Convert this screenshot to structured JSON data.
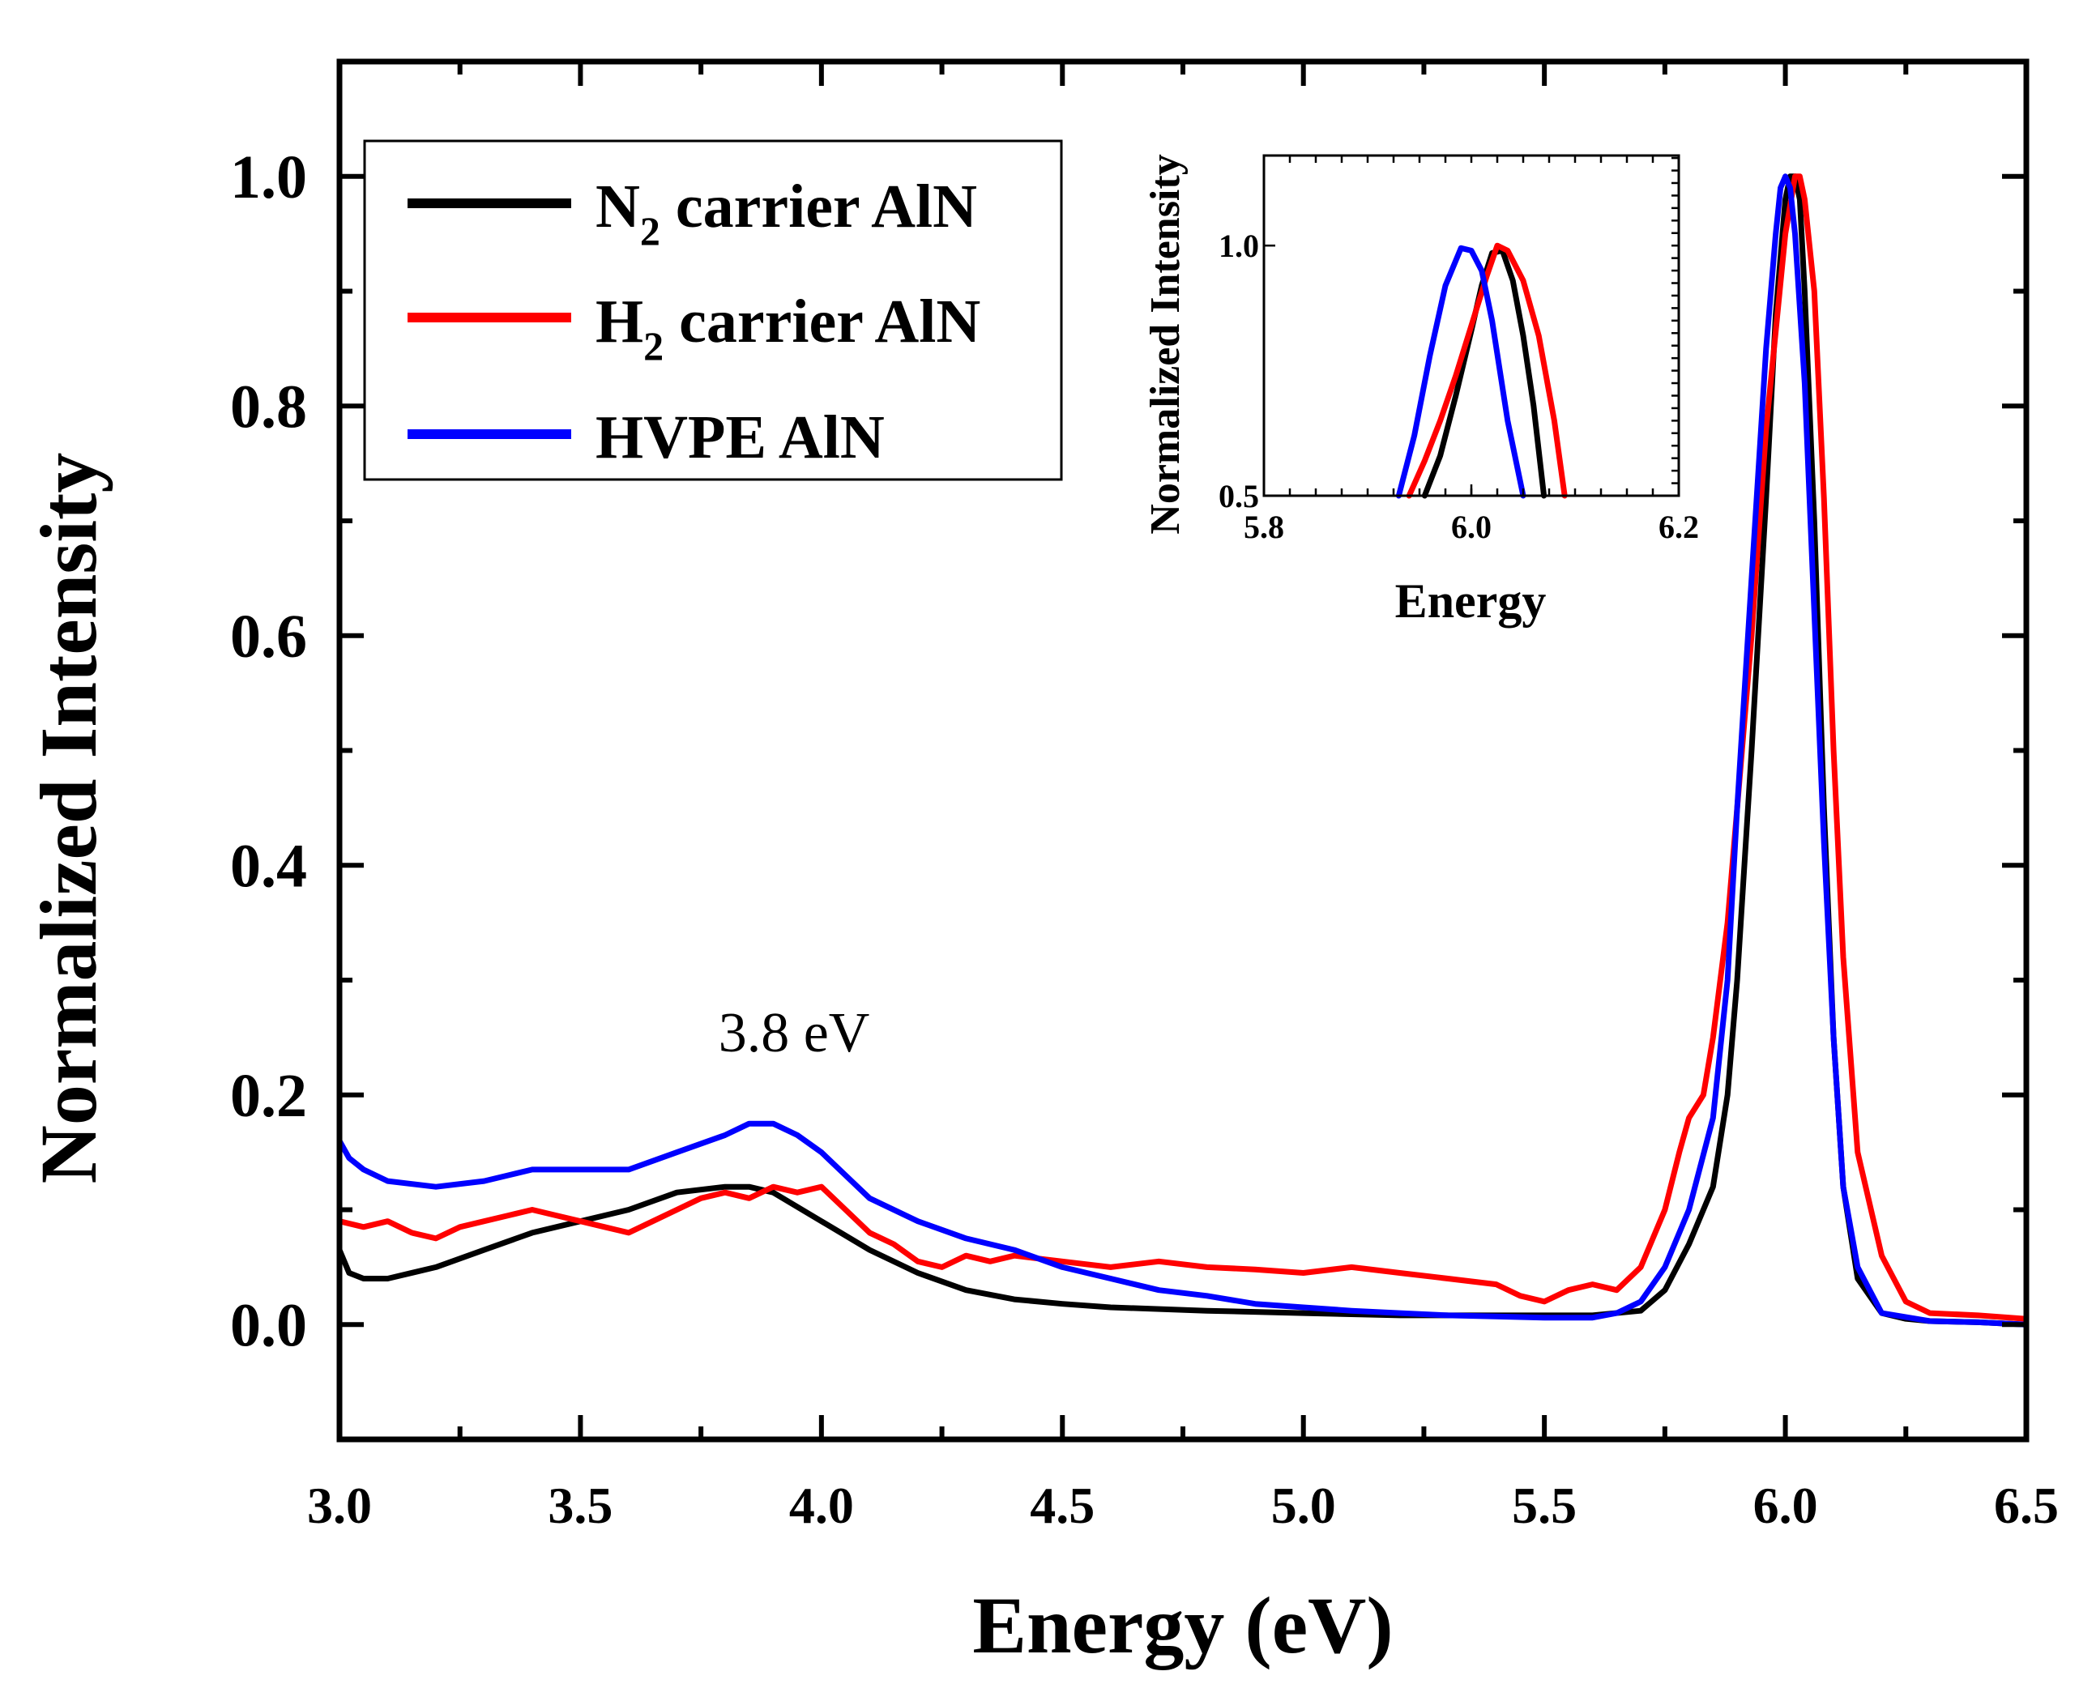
{
  "chart_data": [
    {
      "id": "main",
      "type": "line",
      "xlabel": "Energy (eV)",
      "ylabel": "Normalized Intensity",
      "xlim": [
        3.0,
        6.5
      ],
      "ylim": [
        -0.1,
        1.1
      ],
      "xticks": [
        "3.0",
        "3.5",
        "4.0",
        "4.5",
        "5.0",
        "5.5",
        "6.0",
        "6.5"
      ],
      "yticks": [
        "0.0",
        "0.2",
        "0.4",
        "0.6",
        "0.8",
        "1.0"
      ],
      "annotation": "3.8 eV",
      "legend": {
        "position": "top-left",
        "entries": [
          {
            "base": "N",
            "sub": "2",
            "rest": " carrier AlN",
            "color": "#000000"
          },
          {
            "base": "H",
            "sub": "2",
            "rest": " carrier AlN",
            "color": "#ff0000"
          },
          {
            "base": "HVPE AlN",
            "sub": "",
            "rest": "",
            "color": "#0000ff"
          }
        ]
      },
      "series": [
        {
          "name": "N2 carrier AlN",
          "color": "#000000",
          "x": [
            3.0,
            3.02,
            3.05,
            3.1,
            3.2,
            3.3,
            3.4,
            3.5,
            3.6,
            3.7,
            3.8,
            3.85,
            3.9,
            4.0,
            4.1,
            4.2,
            4.3,
            4.4,
            4.5,
            4.6,
            4.8,
            5.0,
            5.2,
            5.4,
            5.6,
            5.7,
            5.75,
            5.8,
            5.85,
            5.88,
            5.9,
            5.93,
            5.96,
            5.98,
            6.0,
            6.01,
            6.02,
            6.03,
            6.04,
            6.06,
            6.08,
            6.1,
            6.12,
            6.15,
            6.2,
            6.25,
            6.3,
            6.4,
            6.5
          ],
          "y": [
            0.065,
            0.045,
            0.04,
            0.04,
            0.05,
            0.065,
            0.08,
            0.09,
            0.1,
            0.115,
            0.12,
            0.12,
            0.115,
            0.09,
            0.065,
            0.045,
            0.03,
            0.022,
            0.018,
            0.015,
            0.012,
            0.01,
            0.008,
            0.008,
            0.008,
            0.012,
            0.03,
            0.07,
            0.12,
            0.2,
            0.3,
            0.5,
            0.72,
            0.88,
            0.98,
            1.0,
            1.0,
            0.98,
            0.9,
            0.7,
            0.45,
            0.25,
            0.12,
            0.04,
            0.01,
            0.005,
            0.003,
            0.002,
            0.0
          ]
        },
        {
          "name": "H2 carrier AlN",
          "color": "#ff0000",
          "x": [
            3.0,
            3.05,
            3.1,
            3.15,
            3.2,
            3.25,
            3.3,
            3.35,
            3.4,
            3.45,
            3.5,
            3.55,
            3.6,
            3.65,
            3.7,
            3.75,
            3.8,
            3.85,
            3.9,
            3.95,
            4.0,
            4.05,
            4.1,
            4.15,
            4.2,
            4.25,
            4.3,
            4.35,
            4.4,
            4.5,
            4.6,
            4.7,
            4.8,
            4.9,
            5.0,
            5.1,
            5.2,
            5.3,
            5.4,
            5.45,
            5.5,
            5.55,
            5.6,
            5.65,
            5.7,
            5.75,
            5.78,
            5.8,
            5.83,
            5.85,
            5.88,
            5.9,
            5.93,
            5.96,
            6.0,
            6.02,
            6.03,
            6.04,
            6.06,
            6.08,
            6.1,
            6.12,
            6.15,
            6.2,
            6.25,
            6.3,
            6.4,
            6.5
          ],
          "y": [
            0.09,
            0.085,
            0.09,
            0.08,
            0.075,
            0.085,
            0.09,
            0.095,
            0.1,
            0.095,
            0.09,
            0.085,
            0.08,
            0.09,
            0.1,
            0.11,
            0.115,
            0.11,
            0.12,
            0.115,
            0.12,
            0.1,
            0.08,
            0.07,
            0.055,
            0.05,
            0.06,
            0.055,
            0.06,
            0.055,
            0.05,
            0.055,
            0.05,
            0.048,
            0.045,
            0.05,
            0.045,
            0.04,
            0.035,
            0.025,
            0.02,
            0.03,
            0.035,
            0.03,
            0.05,
            0.1,
            0.15,
            0.18,
            0.2,
            0.25,
            0.35,
            0.45,
            0.6,
            0.78,
            0.95,
            1.0,
            1.0,
            0.98,
            0.9,
            0.72,
            0.5,
            0.32,
            0.15,
            0.06,
            0.02,
            0.01,
            0.008,
            0.005
          ]
        },
        {
          "name": "HVPE AlN",
          "color": "#0000ff",
          "x": [
            3.0,
            3.02,
            3.05,
            3.1,
            3.2,
            3.3,
            3.35,
            3.4,
            3.5,
            3.6,
            3.7,
            3.8,
            3.85,
            3.9,
            3.95,
            4.0,
            4.05,
            4.1,
            4.2,
            4.3,
            4.4,
            4.5,
            4.6,
            4.7,
            4.8,
            4.9,
            5.0,
            5.1,
            5.2,
            5.3,
            5.4,
            5.5,
            5.6,
            5.65,
            5.7,
            5.75,
            5.8,
            5.85,
            5.88,
            5.9,
            5.93,
            5.96,
            5.98,
            5.99,
            6.0,
            6.01,
            6.02,
            6.04,
            6.06,
            6.08,
            6.1,
            6.12,
            6.15,
            6.2,
            6.3,
            6.4,
            6.5
          ],
          "y": [
            0.16,
            0.145,
            0.135,
            0.125,
            0.12,
            0.125,
            0.13,
            0.135,
            0.135,
            0.135,
            0.15,
            0.165,
            0.175,
            0.175,
            0.165,
            0.15,
            0.13,
            0.11,
            0.09,
            0.075,
            0.065,
            0.05,
            0.04,
            0.03,
            0.025,
            0.018,
            0.015,
            0.012,
            0.01,
            0.008,
            0.007,
            0.006,
            0.006,
            0.01,
            0.02,
            0.05,
            0.1,
            0.18,
            0.3,
            0.45,
            0.65,
            0.85,
            0.95,
            0.99,
            1.0,
            0.99,
            0.95,
            0.82,
            0.62,
            0.42,
            0.25,
            0.12,
            0.05,
            0.01,
            0.003,
            0.002,
            0.0
          ]
        }
      ]
    },
    {
      "id": "inset",
      "type": "line",
      "xlabel": "Energy",
      "ylabel": "Normalized Intensity",
      "xlim": [
        5.8,
        6.2
      ],
      "ylim": [
        0.5,
        1.18
      ],
      "xticks": [
        "5.8",
        "6.0",
        "6.2"
      ],
      "yticks": [
        "0.5",
        "1.0"
      ],
      "series": [
        {
          "name": "N2 carrier AlN",
          "color": "#000000",
          "x": [
            5.955,
            5.97,
            5.985,
            6.0,
            6.01,
            6.02,
            6.03,
            6.04,
            6.05,
            6.06,
            6.07
          ],
          "y": [
            0.5,
            0.58,
            0.7,
            0.83,
            0.92,
            0.985,
            0.99,
            0.93,
            0.82,
            0.68,
            0.5
          ]
        },
        {
          "name": "H2 carrier AlN",
          "color": "#ff0000",
          "x": [
            5.94,
            5.955,
            5.97,
            5.985,
            6.0,
            6.015,
            6.025,
            6.035,
            6.05,
            6.065,
            6.08,
            6.09
          ],
          "y": [
            0.5,
            0.57,
            0.65,
            0.74,
            0.84,
            0.94,
            1.0,
            0.99,
            0.93,
            0.82,
            0.65,
            0.5
          ]
        },
        {
          "name": "HVPE AlN",
          "color": "#0000ff",
          "x": [
            5.93,
            5.945,
            5.96,
            5.975,
            5.99,
            6.0,
            6.01,
            6.02,
            6.035,
            6.05
          ],
          "y": [
            0.5,
            0.62,
            0.78,
            0.92,
            0.995,
            0.99,
            0.95,
            0.85,
            0.65,
            0.5
          ]
        }
      ]
    }
  ]
}
